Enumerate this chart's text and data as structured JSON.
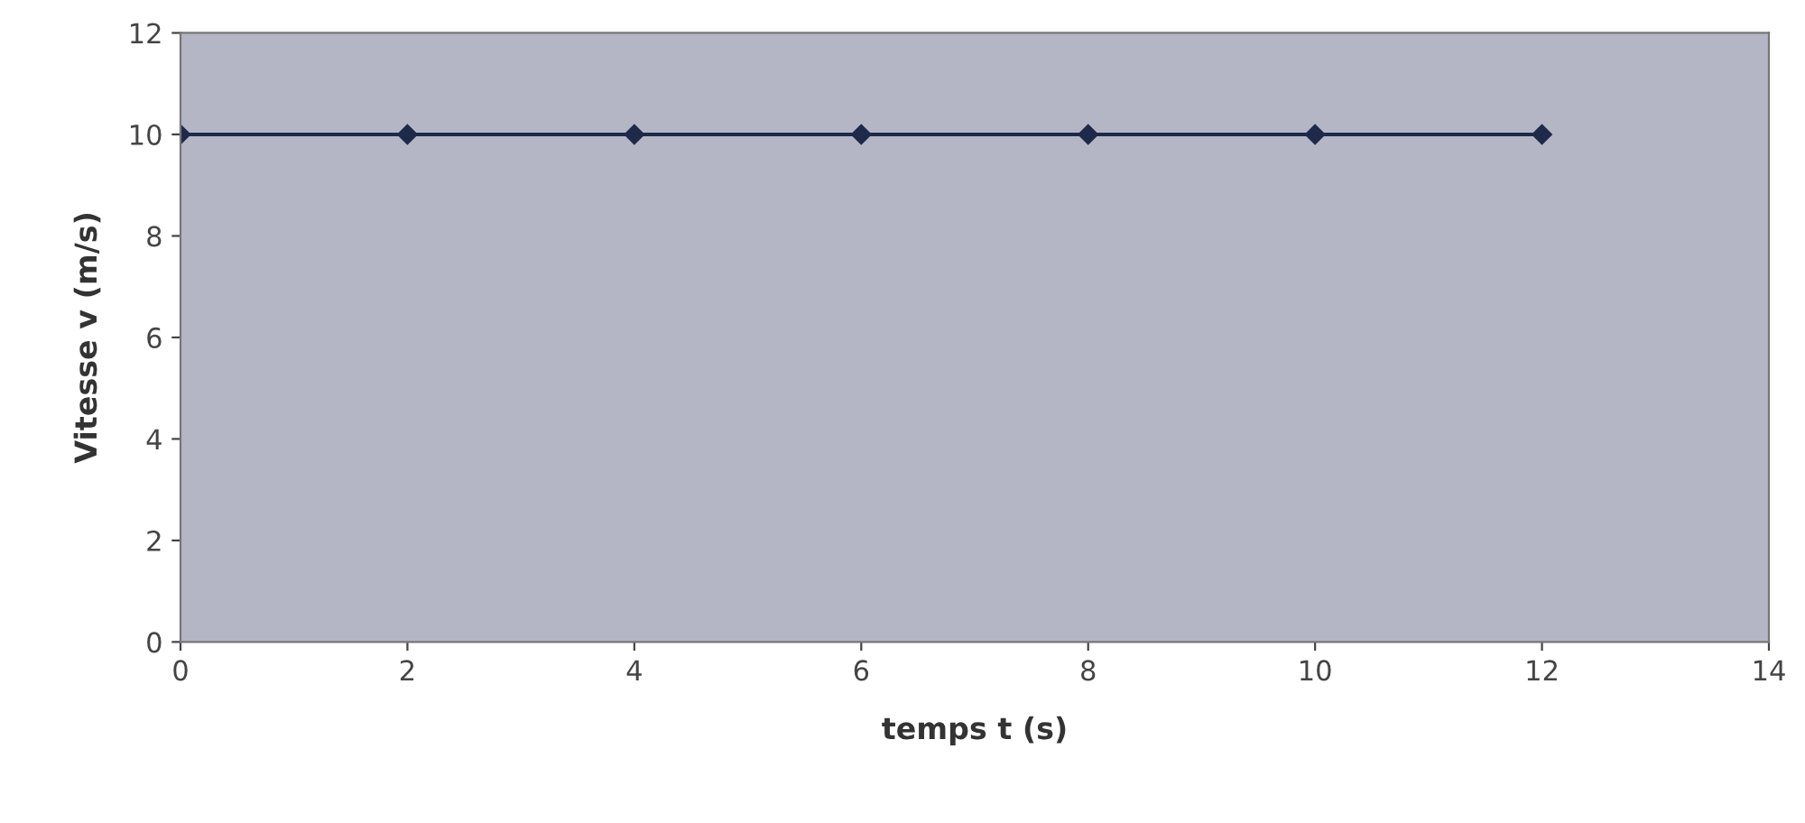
{
  "chart_data": {
    "type": "line",
    "xlabel": "temps t (s)",
    "ylabel": "Vitesse v (m/s)",
    "x": [
      0,
      2,
      4,
      6,
      8,
      10,
      12
    ],
    "series": [
      {
        "color": "#1f2a4a",
        "values": [
          10,
          10,
          10,
          10,
          10,
          10,
          10
        ]
      }
    ],
    "xlim": [
      0,
      14
    ],
    "xticks": [
      0,
      2,
      4,
      6,
      8,
      10,
      12,
      14
    ],
    "ylim": [
      0,
      12
    ],
    "yticks": [
      0,
      2,
      4,
      6,
      8,
      10,
      12
    ],
    "grid": false,
    "legend": false,
    "marker": "diamond",
    "line_style": "solid"
  }
}
